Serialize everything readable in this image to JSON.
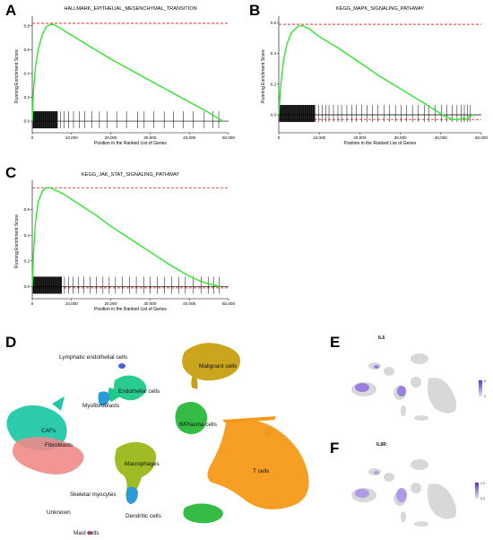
{
  "panel_labels": [
    "A",
    "B",
    "C",
    "D",
    "E",
    "F"
  ],
  "colors": {
    "curve": "#2ee82e",
    "dashed": "#e8322a",
    "ticks": "#000000",
    "feature_low": "#d8d8d8",
    "feature_high": "#5b2bd6"
  },
  "chart_data": [
    {
      "type": "line",
      "panel": "A",
      "title": "HALLMARK_EPITHELIAL_MESENCHYMAL_TRANSITION",
      "xlabel": "Position in the Ranked List of Genes",
      "ylabel": "Running Enrichment Score",
      "xlim": [
        0,
        50000
      ],
      "ylim": [
        -0.05,
        0.85
      ],
      "xticks": [
        0,
        10000,
        20000,
        30000,
        40000,
        50000
      ],
      "xtick_labels": [
        "0",
        "10,000",
        "20,000",
        "30,000",
        "40,000",
        "50,000"
      ],
      "yticks": [
        0.0,
        0.2,
        0.4,
        0.6,
        0.8
      ],
      "ytick_labels": [
        "0.0",
        "0.2",
        "0.4",
        "0.6",
        "0.8"
      ],
      "dashed_lines": [
        0.82
      ],
      "x": [
        0,
        300,
        800,
        1500,
        2500,
        3500,
        4500,
        5500,
        7000,
        9000,
        12000,
        15000,
        20000,
        25000,
        30000,
        35000,
        40000,
        44000,
        47000,
        48500
      ],
      "y": [
        0.0,
        0.25,
        0.45,
        0.6,
        0.72,
        0.79,
        0.81,
        0.81,
        0.78,
        0.74,
        0.68,
        0.62,
        0.52,
        0.43,
        0.34,
        0.25,
        0.16,
        0.09,
        0.03,
        0.0
      ],
      "hits_dense_end": 6500,
      "hits_sparse": [
        7200,
        8100,
        9300,
        10500,
        12000,
        13400,
        15200,
        17100,
        19000,
        21500,
        24000,
        26800,
        28500,
        31000,
        33600,
        36000,
        38500,
        41000,
        43800,
        46000,
        47500
      ]
    },
    {
      "type": "line",
      "panel": "B",
      "title": "KEGG_MAPK_SIGNALING_PATHWAY",
      "xlabel": "Position in the Ranked List of Genes",
      "ylabel": "Running Enrichment Score",
      "xlim": [
        0,
        50000
      ],
      "ylim": [
        -0.08,
        0.62
      ],
      "xticks": [
        0,
        10000,
        20000,
        30000,
        40000,
        50000
      ],
      "xtick_labels": [
        "0",
        "10,000",
        "20,000",
        "30,000",
        "40,000",
        "50,000"
      ],
      "yticks": [
        0.0,
        0.2,
        0.4,
        0.6
      ],
      "ytick_labels": [
        "0.0",
        "0.2",
        "0.4",
        "0.6"
      ],
      "dashed_lines": [
        0.59,
        -0.03
      ],
      "x": [
        0,
        500,
        1200,
        2000,
        3000,
        4000,
        5000,
        6000,
        7500,
        10000,
        15000,
        20000,
        25000,
        30000,
        35000,
        38000,
        41000,
        43000,
        44500,
        45500,
        46500,
        47000,
        48000
      ],
      "y": [
        0.0,
        0.2,
        0.36,
        0.46,
        0.53,
        0.56,
        0.58,
        0.58,
        0.56,
        0.51,
        0.43,
        0.34,
        0.25,
        0.17,
        0.09,
        0.04,
        -0.01,
        -0.03,
        -0.03,
        -0.02,
        -0.03,
        -0.01,
        0.0
      ],
      "hits_dense_end": 9000,
      "hits_sparse": [
        9800,
        10700,
        11600,
        12400,
        13500,
        14600,
        15500,
        16800,
        18000,
        19200,
        20500,
        21800,
        23100,
        24500,
        26000,
        27300,
        28800,
        30200,
        31500,
        33000,
        34400,
        35900,
        37100,
        38600,
        40100,
        41500,
        42800,
        44000,
        45000,
        45800,
        46600,
        47300
      ]
    },
    {
      "type": "line",
      "panel": "C",
      "title": "KEGG_JAK_STAT_SIGNALING_PATHWAY",
      "xlabel": "Position in the Ranked List of Genes",
      "ylabel": "Running Enrichment Score",
      "xlim": [
        0,
        50000
      ],
      "ylim": [
        -0.05,
        0.8
      ],
      "xticks": [
        0,
        10000,
        20000,
        30000,
        40000,
        50000
      ],
      "xtick_labels": [
        "0",
        "10,000",
        "20,000",
        "30,000",
        "40,000",
        "50,000"
      ],
      "yticks": [
        0.0,
        0.2,
        0.4,
        0.6
      ],
      "ytick_labels": [
        "0.0",
        "0.2",
        "0.4",
        "0.6"
      ],
      "dashed_lines": [
        0.77,
        -0.01
      ],
      "x": [
        0,
        300,
        800,
        1500,
        2500,
        3500,
        4500,
        6000,
        8000,
        12000,
        16000,
        20000,
        25000,
        30000,
        35000,
        40000,
        43000,
        45000,
        46500,
        48000
      ],
      "y": [
        0.0,
        0.25,
        0.5,
        0.66,
        0.74,
        0.77,
        0.77,
        0.75,
        0.72,
        0.64,
        0.56,
        0.47,
        0.37,
        0.27,
        0.17,
        0.08,
        0.04,
        0.02,
        0.01,
        0.0
      ],
      "hits_dense_end": 7500,
      "hits_sparse": [
        8200,
        9300,
        10400,
        11800,
        13100,
        14700,
        16300,
        18000,
        19600,
        21200,
        23000,
        24800,
        26500,
        28400,
        30000,
        31800,
        33700,
        35500,
        37300,
        39000,
        41000,
        43000,
        44800,
        46200,
        47600
      ]
    }
  ],
  "umap": {
    "panel": "D",
    "clusters": [
      {
        "label": "Lymphatic endothelial cells",
        "color": "#4a5ed8"
      },
      {
        "label": "Endothelial cells",
        "color": "#1ec98a"
      },
      {
        "label": "Myofibroblasts",
        "color": "#2a9ad8"
      },
      {
        "label": "CAFs",
        "color": "#20c8a8"
      },
      {
        "label": "Fibroblasts",
        "color": "#f08a8a"
      },
      {
        "label": "Malignant cells",
        "color": "#c8a010"
      },
      {
        "label": "B/Plasma cells",
        "color": "#2ab83a"
      },
      {
        "label": "Macrophages",
        "color": "#9ab818"
      },
      {
        "label": "T cells",
        "color": "#f59a18"
      },
      {
        "label": "Skeletal myocytes",
        "color": "#888888"
      },
      {
        "label": "Dendritic cells",
        "color": "#2a9ad8"
      },
      {
        "label": "Unknown",
        "color": "#888888"
      },
      {
        "label": "Mast cells",
        "color": "#d8607a"
      }
    ]
  },
  "feature_plots": [
    {
      "panel": "E",
      "gene": "IL6",
      "legend_ticks": [
        "6",
        "5",
        "4",
        "3",
        "2",
        "1",
        "0"
      ]
    },
    {
      "panel": "F",
      "gene": "IL6R",
      "legend_ticks": [
        "2.0",
        "1.5",
        "1.0",
        "0.5",
        "0.0"
      ]
    }
  ]
}
